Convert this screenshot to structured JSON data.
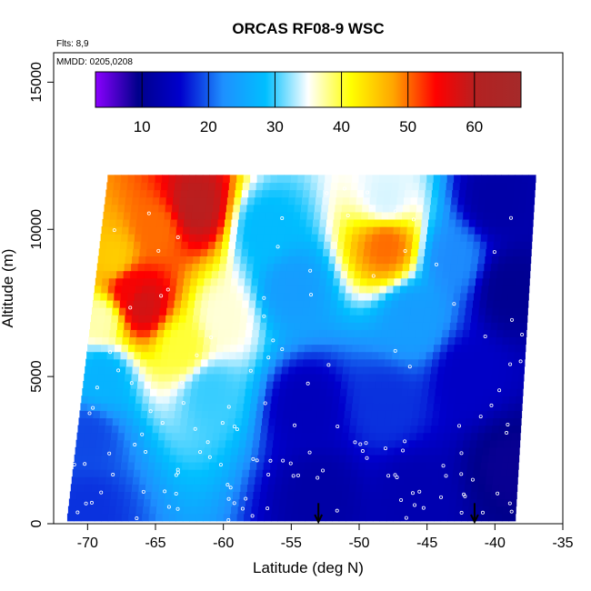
{
  "chart_data": {
    "type": "heatmap",
    "title": "ORCAS RF08-9 WSC",
    "annotations": [
      "Flts: 8,9",
      "MMDD: 0205,0208"
    ],
    "xlabel": "Latitude (deg N)",
    "ylabel": "Altitude (m)",
    "xlim": [
      -72.5,
      -35
    ],
    "ylim": [
      0,
      16000
    ],
    "x_ticks": [
      -70,
      -65,
      -60,
      -55,
      -50,
      -45,
      -40,
      -35
    ],
    "y_ticks": [
      0,
      5000,
      10000,
      15000
    ],
    "colorbar": {
      "range": [
        3,
        67
      ],
      "ticks": [
        10,
        20,
        30,
        40,
        50,
        60
      ],
      "colors": [
        "#8b00ff",
        "#00008b",
        "#0000cd",
        "#1e90ff",
        "#00bfff",
        "#ffffff",
        "#ffff00",
        "#ffa500",
        "#ff0000",
        "#b22222",
        "#a52a2a"
      ]
    },
    "domain": {
      "left_edge_at_bottom": -71.5,
      "left_edge_at_top": -68.5,
      "right_edge_at_bottom": -38.5,
      "right_edge_at_top": -37.0,
      "alt_bottom": 100,
      "alt_top": 11700
    },
    "field_anchors": [
      {
        "lat": -70,
        "alt": 500,
        "value": 18
      },
      {
        "lat": -70,
        "alt": 3000,
        "value": 19
      },
      {
        "lat": -69,
        "alt": 5000,
        "value": 27
      },
      {
        "lat": -69,
        "alt": 7000,
        "value": 37
      },
      {
        "lat": -68,
        "alt": 9000,
        "value": 45
      },
      {
        "lat": -67,
        "alt": 8000,
        "value": 55
      },
      {
        "lat": -66,
        "alt": 7500,
        "value": 58
      },
      {
        "lat": -62,
        "alt": 10800,
        "value": 60
      },
      {
        "lat": -65,
        "alt": 10000,
        "value": 50
      },
      {
        "lat": -63,
        "alt": 6000,
        "value": 40
      },
      {
        "lat": -60,
        "alt": 7000,
        "value": 36
      },
      {
        "lat": -61,
        "alt": 4500,
        "value": 30
      },
      {
        "lat": -57,
        "alt": 10000,
        "value": 28
      },
      {
        "lat": -55,
        "alt": 8000,
        "value": 24
      },
      {
        "lat": -54,
        "alt": 4000,
        "value": 14
      },
      {
        "lat": -53,
        "alt": 1000,
        "value": 12
      },
      {
        "lat": -48,
        "alt": 11000,
        "value": 34
      },
      {
        "lat": -48,
        "alt": 9500,
        "value": 50
      },
      {
        "lat": -46,
        "alt": 7000,
        "value": 24
      },
      {
        "lat": -48,
        "alt": 4000,
        "value": 18
      },
      {
        "lat": -46,
        "alt": 1000,
        "value": 13
      },
      {
        "lat": -43,
        "alt": 9000,
        "value": 22
      },
      {
        "lat": -42,
        "alt": 5000,
        "value": 15
      },
      {
        "lat": -40,
        "alt": 11000,
        "value": 12
      },
      {
        "lat": -39,
        "alt": 8000,
        "value": 10
      },
      {
        "lat": -39,
        "alt": 2000,
        "value": 9
      }
    ],
    "markers": [
      {
        "type": "arrow",
        "lat": -53,
        "alt": 700
      },
      {
        "type": "arrow",
        "lat": -41.5,
        "alt": 700
      }
    ]
  }
}
